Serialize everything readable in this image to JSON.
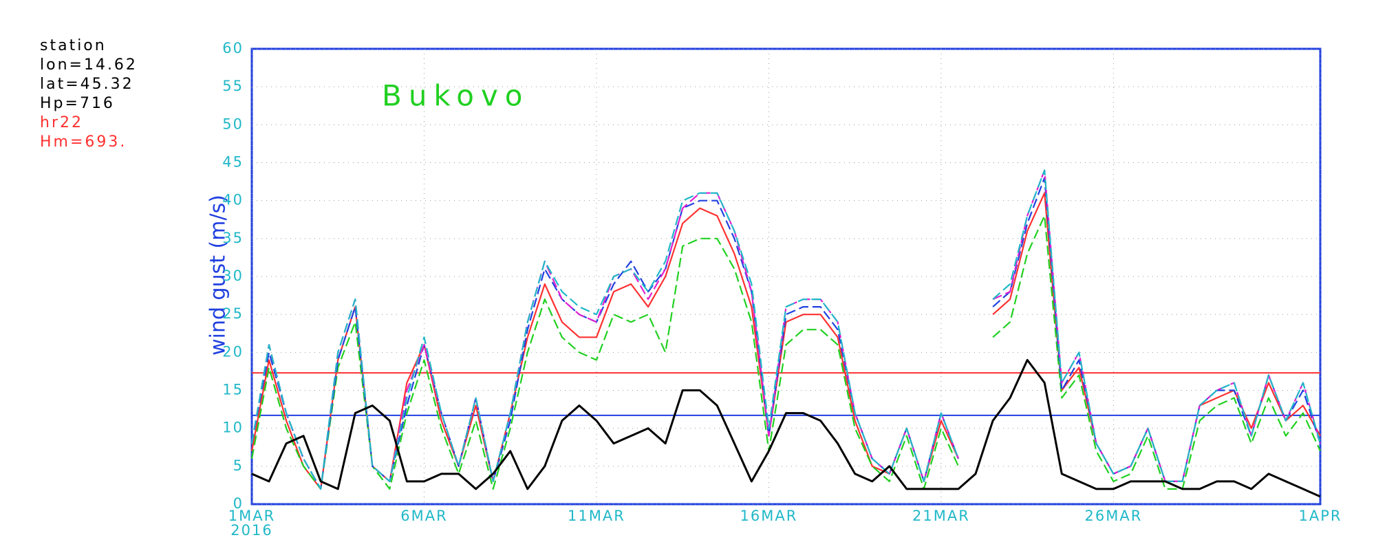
{
  "chart_data": {
    "type": "line",
    "title": "Bukovo",
    "y_label": "wind gust (m/s)",
    "x_year_label": "2016",
    "info_lines": [
      {
        "text": "station",
        "color": "#000000"
      },
      {
        "text": "lon=14.62",
        "color": "#000000"
      },
      {
        "text": "lat=45.32",
        "color": "#000000"
      },
      {
        "text": "Hp=716",
        "color": "#000000"
      },
      {
        "text": "hr22",
        "color": "#ff3030"
      },
      {
        "text": "Hm=693.",
        "color": "#ff3030"
      }
    ],
    "xlim": [
      0,
      31
    ],
    "xticks": [
      {
        "value": 0,
        "label": "1MAR"
      },
      {
        "value": 5,
        "label": "6MAR"
      },
      {
        "value": 10,
        "label": "11MAR"
      },
      {
        "value": 15,
        "label": "16MAR"
      },
      {
        "value": 20,
        "label": "21MAR"
      },
      {
        "value": 25,
        "label": "26MAR"
      },
      {
        "value": 31,
        "label": "1APR"
      }
    ],
    "ylim": [
      0,
      60
    ],
    "yticks": [
      0,
      5,
      10,
      15,
      20,
      25,
      30,
      35,
      40,
      45,
      50,
      55,
      60
    ],
    "grid": true,
    "reference_lines": [
      {
        "value": 17.3,
        "color": "#ff3030"
      },
      {
        "value": 11.7,
        "color": "#2040e0"
      }
    ],
    "x": [
      0,
      0.5,
      1,
      1.5,
      2,
      2.5,
      3,
      3.5,
      4,
      4.5,
      5,
      5.5,
      6,
      6.5,
      7,
      7.5,
      8,
      8.5,
      9,
      9.5,
      10,
      10.5,
      11,
      11.5,
      12,
      12.5,
      13,
      13.5,
      14,
      14.5,
      15,
      15.5,
      16,
      16.5,
      17,
      17.5,
      18,
      18.5,
      19,
      19.5,
      20,
      20.5,
      21,
      21.5,
      22,
      22.5,
      23,
      23.5,
      24,
      24.5,
      25,
      25.5,
      26,
      26.5,
      27,
      27.5,
      28,
      28.5,
      29,
      29.5,
      30,
      30.5,
      31
    ],
    "series": [
      {
        "color": "#ff3030",
        "dashed": false,
        "values": [
          7,
          19,
          11,
          5,
          2,
          19,
          26,
          5,
          3,
          16,
          21,
          11,
          5,
          13,
          3,
          12,
          22,
          29,
          24,
          22,
          22,
          28,
          29,
          26,
          30,
          37,
          39,
          38,
          33,
          26,
          9,
          24,
          25,
          25,
          22,
          11,
          5,
          4,
          10,
          3,
          11,
          6,
          null,
          25,
          27,
          36,
          41,
          15,
          18,
          8,
          4,
          5,
          10,
          3,
          3,
          13,
          14,
          15,
          10,
          16,
          11,
          13,
          9
        ]
      },
      {
        "color": "#20d020",
        "dashed": true,
        "values": [
          6,
          18,
          10,
          5,
          2,
          18,
          24,
          5,
          2,
          12,
          19,
          10,
          4,
          11,
          2,
          10,
          20,
          27,
          22,
          20,
          19,
          25,
          24,
          25,
          20,
          34,
          35,
          35,
          31,
          24,
          7,
          21,
          23,
          23,
          21,
          10,
          5,
          3,
          9,
          2,
          10,
          5,
          null,
          22,
          24,
          33,
          38,
          14,
          17,
          7,
          3,
          4,
          9,
          2,
          2,
          11,
          13,
          14,
          8,
          14,
          9,
          12,
          7
        ]
      },
      {
        "color": "#2040e0",
        "dashed": true,
        "values": [
          8,
          20,
          12,
          6,
          2,
          19,
          26,
          5,
          3,
          13,
          21,
          12,
          5,
          14,
          3,
          11,
          23,
          31,
          27,
          25,
          24,
          29,
          32,
          28,
          31,
          39,
          40,
          40,
          35,
          28,
          9,
          25,
          26,
          26,
          23,
          12,
          6,
          4,
          10,
          3,
          12,
          6,
          null,
          26,
          28,
          37,
          43,
          15,
          19,
          8,
          4,
          5,
          10,
          3,
          3,
          13,
          15,
          15,
          9,
          17,
          11,
          15,
          8
        ]
      },
      {
        "color": "#e020d0",
        "dashed": true,
        "values": [
          8,
          21,
          12,
          6,
          2,
          20,
          27,
          5,
          3,
          15,
          21,
          12,
          5,
          14,
          3,
          12,
          24,
          32,
          27,
          25,
          24,
          30,
          31,
          27,
          31,
          39,
          41,
          41,
          36,
          28,
          9,
          26,
          27,
          27,
          24,
          12,
          6,
          4,
          10,
          3,
          12,
          6,
          null,
          27,
          28,
          38,
          44,
          16,
          20,
          8,
          4,
          5,
          10,
          3,
          3,
          13,
          15,
          16,
          9,
          17,
          11,
          16,
          8
        ]
      },
      {
        "color": "#20b8c8",
        "dashed": true,
        "values": [
          8,
          21,
          12,
          6,
          2,
          20,
          27,
          5,
          3,
          14,
          22,
          12,
          5,
          14,
          3,
          12,
          24,
          32,
          28,
          26,
          25,
          30,
          31,
          28,
          32,
          40,
          41,
          41,
          36,
          29,
          10,
          26,
          27,
          27,
          24,
          12,
          6,
          4,
          10,
          3,
          12,
          6,
          null,
          27,
          29,
          38,
          44,
          16,
          20,
          8,
          4,
          5,
          10,
          3,
          3,
          13,
          15,
          16,
          9,
          17,
          11,
          16,
          8
        ]
      },
      {
        "color": "#000000",
        "dashed": false,
        "values": [
          4,
          3,
          8,
          9,
          3,
          2,
          12,
          13,
          11,
          3,
          3,
          4,
          4,
          2,
          4,
          7,
          2,
          5,
          11,
          13,
          11,
          8,
          9,
          10,
          8,
          15,
          15,
          13,
          8,
          3,
          7,
          12,
          12,
          11,
          8,
          4,
          3,
          5,
          2,
          2,
          2,
          2,
          4,
          11,
          14,
          19,
          16,
          4,
          3,
          2,
          2,
          3,
          3,
          3,
          2,
          2,
          3,
          3,
          2,
          4,
          3,
          2,
          1
        ]
      }
    ]
  }
}
